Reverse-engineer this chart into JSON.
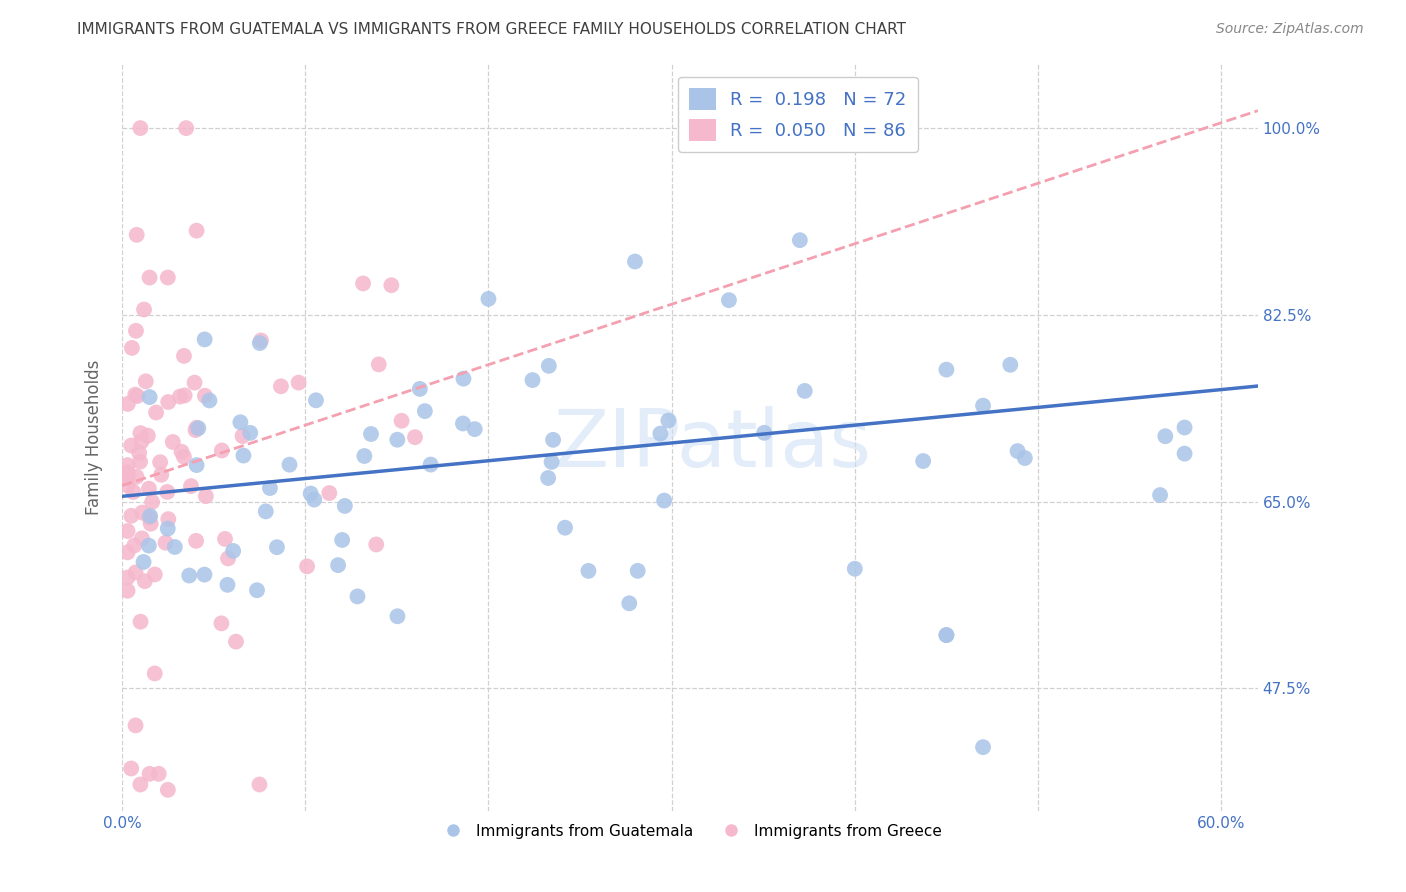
{
  "title": "IMMIGRANTS FROM GUATEMALA VS IMMIGRANTS FROM GREECE FAMILY HOUSEHOLDS CORRELATION CHART",
  "source": "Source: ZipAtlas.com",
  "ylabel": "Family Households",
  "ytick_positions": [
    0.475,
    0.65,
    0.825,
    1.0
  ],
  "ytick_labels": [
    "47.5%",
    "65.0%",
    "82.5%",
    "100.0%"
  ],
  "xtick_positions": [
    0.0,
    0.1,
    0.2,
    0.3,
    0.4,
    0.5,
    0.6
  ],
  "xtick_labels_show": [
    "0.0%",
    "",
    "",
    "",
    "",
    "",
    "60.0%"
  ],
  "R_blue": 0.198,
  "N_blue": 72,
  "R_pink": 0.05,
  "N_pink": 86,
  "watermark": "ZIPatlas",
  "background_color": "#ffffff",
  "grid_color": "#d0d0d0",
  "scatter_blue_color": "#aac4e8",
  "scatter_pink_color": "#f5b8cc",
  "line_blue_color": "#4472c4",
  "line_pink_color": "#f4a0b0",
  "title_color": "#404040",
  "axis_label_color": "#4472c4",
  "ylabel_color": "#666666",
  "legend_text_color": "#4472c4",
  "source_color": "#888888",
  "xlim": [
    0.0,
    0.62
  ],
  "ylim": [
    0.36,
    1.06
  ],
  "blue_line_x0": 0.0,
  "blue_line_y0": 0.655,
  "blue_line_x1": 0.6,
  "blue_line_y1": 0.755,
  "pink_line_x0": 0.0,
  "pink_line_y0": 0.665,
  "pink_line_x1": 0.3,
  "pink_line_y1": 0.835
}
